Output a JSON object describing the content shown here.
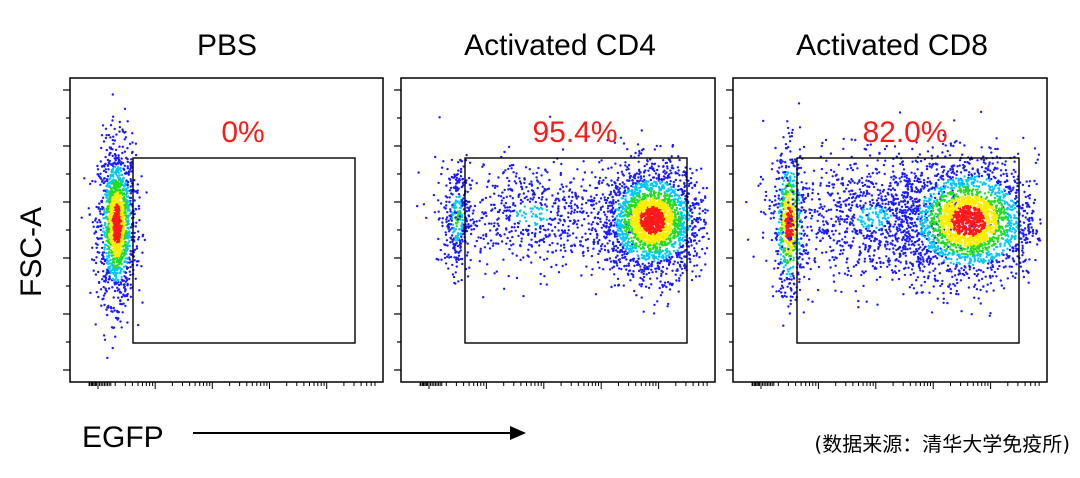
{
  "chart_data": {
    "type": "scatter",
    "subtype": "flow-cytometry-density-plot",
    "ylabel": "FSC-A",
    "xlabel": "EGFP",
    "source_note": "(数据来源：清华大学免疫所)",
    "colors": {
      "gate_label": "#ff1a1a",
      "density": [
        "#1a1aff",
        "#00c8ff",
        "#22dd22",
        "#ffee00",
        "#ff1a1a"
      ]
    },
    "panels": [
      {
        "title": "PBS",
        "gate_percent": "0%",
        "gate_percent_value": 0.0,
        "populations": [
          {
            "x_center": 0.15,
            "x_spread": 0.03,
            "y_center": 0.52,
            "y_spread": 0.13,
            "points": 1400,
            "density": "high"
          }
        ]
      },
      {
        "title": "Activated CD4",
        "gate_percent": "95.4%",
        "gate_percent_value": 95.4,
        "populations": [
          {
            "x_center": 0.18,
            "x_spread": 0.02,
            "y_center": 0.54,
            "y_spread": 0.09,
            "points": 300,
            "density": "medium"
          },
          {
            "x_center": 0.42,
            "x_spread": 0.15,
            "y_center": 0.55,
            "y_spread": 0.09,
            "points": 650,
            "density": "low"
          },
          {
            "x_center": 0.8,
            "x_spread": 0.08,
            "y_center": 0.53,
            "y_spread": 0.09,
            "points": 2200,
            "density": "high"
          }
        ]
      },
      {
        "title": "Activated CD8",
        "gate_percent": "82.0%",
        "gate_percent_value": 82.0,
        "populations": [
          {
            "x_center": 0.18,
            "x_spread": 0.025,
            "y_center": 0.52,
            "y_spread": 0.12,
            "points": 600,
            "density": "high"
          },
          {
            "x_center": 0.45,
            "x_spread": 0.15,
            "y_center": 0.54,
            "y_spread": 0.1,
            "points": 1000,
            "density": "low"
          },
          {
            "x_center": 0.75,
            "x_spread": 0.11,
            "y_center": 0.53,
            "y_spread": 0.1,
            "points": 2200,
            "density": "high"
          }
        ]
      }
    ]
  }
}
